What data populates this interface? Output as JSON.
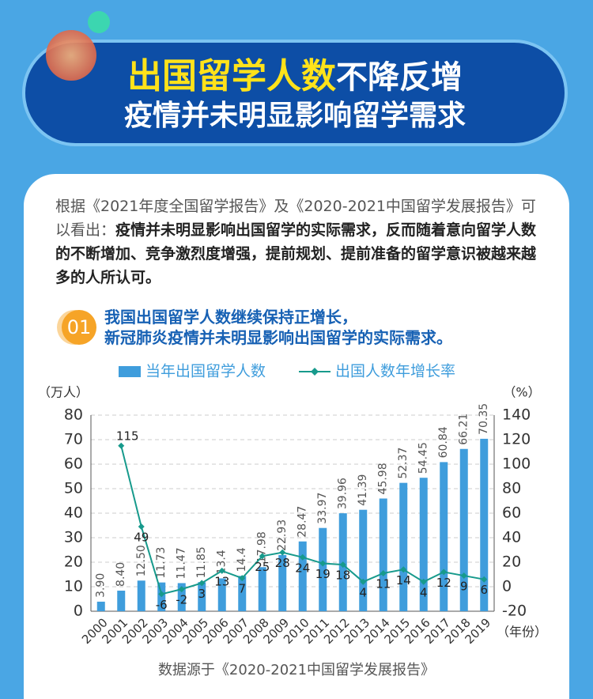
{
  "header": {
    "title_highlight": "出国留学人数",
    "title_rest": "不降反增",
    "subtitle": "疫情并未明显影响留学需求"
  },
  "intro": {
    "normal": "根据《2021年度全国留学报告》及《2020-2021中国留学发展报告》可以看出：",
    "bold": "疫情并未明显影响出国留学的实际需求，反而随着意向留学人数的不断增加、竞争激烈度增强，提前规划、提前准备的留学意识被越来越多的人所认可。"
  },
  "section": {
    "number": "01",
    "lines": [
      "我国出国留学人数继续保持正增长，",
      "新冠肺炎疫情并未明显影响出国留学的实际需求。"
    ]
  },
  "chart_data": {
    "type": "bar",
    "categories": [
      "2000",
      "2001",
      "2002",
      "2003",
      "2004",
      "2005",
      "2006",
      "2007",
      "2008",
      "2009",
      "2010",
      "2011",
      "2012",
      "2013",
      "2014",
      "2015",
      "2016",
      "2017",
      "2018",
      "2019"
    ],
    "series": [
      {
        "name": "当年出国留学人数",
        "type": "bar",
        "color": "#3f9ddc",
        "values": [
          3.9,
          8.4,
          12.5,
          11.73,
          11.47,
          11.85,
          13.4,
          14.4,
          17.98,
          22.93,
          28.47,
          33.97,
          39.96,
          41.39,
          45.98,
          52.37,
          54.45,
          60.84,
          66.21,
          70.35
        ],
        "value_labels": [
          "3.90",
          "8.40",
          "12.50",
          "11.73",
          "11.47",
          "11.85",
          "13.4",
          "14.4",
          "17.98",
          "22.93",
          "28.47",
          "33.97",
          "39.96",
          "41.39",
          "45.98",
          "52.37",
          "54.45",
          "60.84",
          "66.21",
          "70.35"
        ]
      },
      {
        "name": "出国人数年增长率",
        "type": "line",
        "axis": "y2",
        "color": "#179a8c",
        "values": [
          null,
          115,
          49,
          -6,
          -2,
          3,
          13,
          7,
          25,
          28,
          24,
          19,
          18,
          4,
          11,
          14,
          4,
          12,
          9,
          6
        ]
      }
    ],
    "y_label": "（万人）",
    "y2_label": "（%）",
    "x_label": "（年份）",
    "ylim": [
      0,
      80
    ],
    "yticks": [
      0,
      10,
      20,
      30,
      40,
      50,
      60,
      70,
      80
    ],
    "y2lim": [
      -20,
      140
    ],
    "y2ticks": [
      -20,
      0,
      20,
      40,
      60,
      80,
      100,
      120,
      140
    ],
    "grid": true,
    "legend": "top",
    "source": "数据源于《2020-2021中国留学发展报告》"
  }
}
